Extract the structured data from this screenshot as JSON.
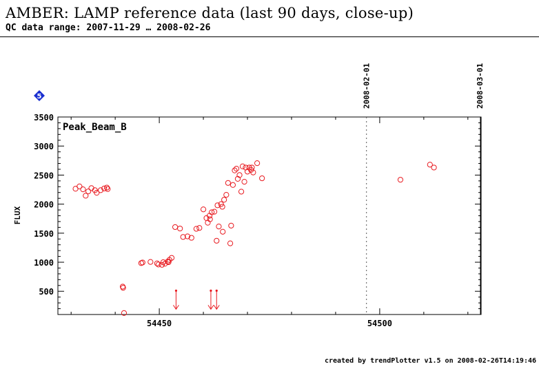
{
  "title": "AMBER: LAMP reference data (last 90 days, close-up)",
  "subtitle": "QC data range: 2007-11-29 … 2008-02-26",
  "footer": "created by trendPlotter v1.5 on 2008-02-26T14:19:46",
  "badge": {
    "label": "5",
    "color": "#1a2fd0"
  },
  "chart_data": {
    "type": "scatter",
    "panel_label": "Peak_Beam_B",
    "ylabel": "FLUX",
    "xlim": [
      54427,
      54523
    ],
    "ylim": [
      100,
      3500
    ],
    "x_ticks": [
      54450,
      54500
    ],
    "x_tick_labels": [
      "54450",
      "54500"
    ],
    "y_ticks": [
      500,
      1000,
      1500,
      2000,
      2500,
      3000,
      3500
    ],
    "y_tick_labels": [
      "500",
      "1000",
      "1500",
      "2000",
      "2500",
      "3000",
      "3500"
    ],
    "date_markers": [
      {
        "x": 54497,
        "label": "2008-02-01",
        "dashed": true
      },
      {
        "x": 54526,
        "label": "2008-03-01",
        "dashed": false
      }
    ],
    "marker_color": "#e8191f",
    "grid": false,
    "points": [
      [
        54431.0,
        2265
      ],
      [
        54431.9,
        2305
      ],
      [
        54432.7,
        2255
      ],
      [
        54433.3,
        2145
      ],
      [
        54433.9,
        2220
      ],
      [
        54434.6,
        2275
      ],
      [
        54435.4,
        2240
      ],
      [
        54435.8,
        2195
      ],
      [
        54436.7,
        2240
      ],
      [
        54437.5,
        2270
      ],
      [
        54438.1,
        2285
      ],
      [
        54438.3,
        2260
      ],
      [
        54441.7,
        580
      ],
      [
        54441.8,
        560
      ],
      [
        54442.0,
        125
      ],
      [
        54445.9,
        985
      ],
      [
        54446.2,
        995
      ],
      [
        54448.0,
        1005
      ],
      [
        54449.5,
        980
      ],
      [
        54449.8,
        960
      ],
      [
        54450.6,
        955
      ],
      [
        54450.9,
        1000
      ],
      [
        54451.3,
        975
      ],
      [
        54451.9,
        1010
      ],
      [
        54452.1,
        1000
      ],
      [
        54452.3,
        1040
      ],
      [
        54452.8,
        1075
      ],
      [
        54453.6,
        1605
      ],
      [
        54454.7,
        1580
      ],
      [
        54455.4,
        1435
      ],
      [
        54456.4,
        1445
      ],
      [
        54457.3,
        1420
      ],
      [
        54458.4,
        1575
      ],
      [
        54459.1,
        1590
      ],
      [
        54460.0,
        1910
      ],
      [
        54460.7,
        1760
      ],
      [
        54461.0,
        1680
      ],
      [
        54461.4,
        1800
      ],
      [
        54461.5,
        1740
      ],
      [
        54461.9,
        1860
      ],
      [
        54462.5,
        1870
      ],
      [
        54463.0,
        1370
      ],
      [
        54463.2,
        1980
      ],
      [
        54463.5,
        1615
      ],
      [
        54464.0,
        2000
      ],
      [
        54464.3,
        1955
      ],
      [
        54464.4,
        1525
      ],
      [
        54464.7,
        2075
      ],
      [
        54465.2,
        2160
      ],
      [
        54465.6,
        2365
      ],
      [
        54466.1,
        1325
      ],
      [
        54466.3,
        1630
      ],
      [
        54466.7,
        2330
      ],
      [
        54467.1,
        2580
      ],
      [
        54467.5,
        2610
      ],
      [
        54467.8,
        2435
      ],
      [
        54468.2,
        2500
      ],
      [
        54468.6,
        2215
      ],
      [
        54468.9,
        2650
      ],
      [
        54469.3,
        2385
      ],
      [
        54469.6,
        2630
      ],
      [
        54470.0,
        2560
      ],
      [
        54470.4,
        2630
      ],
      [
        54470.8,
        2590
      ],
      [
        54471.0,
        2630
      ],
      [
        54471.3,
        2545
      ],
      [
        54472.2,
        2705
      ],
      [
        54473.3,
        2445
      ],
      [
        54504.7,
        2420
      ],
      [
        54511.4,
        2680
      ],
      [
        54512.3,
        2630
      ]
    ],
    "upper_limit_arrows": [
      {
        "x": 54453.8,
        "y": 510
      },
      {
        "x": 54461.7,
        "y": 510
      },
      {
        "x": 54463.0,
        "y": 510
      }
    ]
  }
}
